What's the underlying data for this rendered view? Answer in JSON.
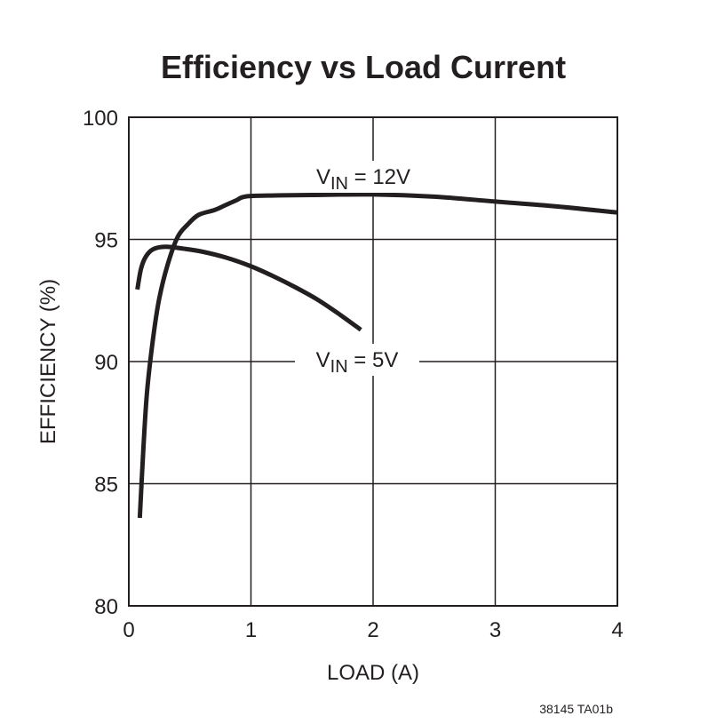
{
  "chart_data": {
    "type": "line",
    "title": "Efficiency vs Load Current",
    "xlabel": "LOAD (A)",
    "ylabel": "EFFICIENCY (%)",
    "xlim": [
      0,
      4
    ],
    "ylim": [
      80,
      100
    ],
    "xticks": [
      "0",
      "1",
      "2",
      "3",
      "4"
    ],
    "yticks": [
      "80",
      "85",
      "90",
      "95",
      "100"
    ],
    "grid": true,
    "line_color": "#231f20",
    "series": [
      {
        "name": "VIN = 12V",
        "label_main": "V",
        "label_sub": "IN",
        "label_rest": " = 12V",
        "x": [
          0.09,
          0.12,
          0.15,
          0.2,
          0.25,
          0.32,
          0.4,
          0.48,
          0.57,
          0.7,
          0.79,
          0.88,
          0.96,
          1.2,
          1.5,
          2.0,
          2.5,
          3.0,
          3.5,
          4.0
        ],
        "y": [
          83.6,
          86.5,
          88.8,
          91.0,
          92.6,
          94.0,
          95.1,
          95.6,
          96.0,
          96.2,
          96.4,
          96.6,
          96.76,
          96.8,
          96.82,
          96.84,
          96.75,
          96.55,
          96.35,
          96.1
        ]
      },
      {
        "name": "VIN = 5V",
        "label_main": "V",
        "label_sub": "IN",
        "label_rest": " = 5V",
        "x": [
          0.07,
          0.1,
          0.14,
          0.2,
          0.3,
          0.45,
          0.6,
          0.8,
          1.0,
          1.18,
          1.36,
          1.54,
          1.72,
          1.9
        ],
        "y": [
          92.95,
          93.8,
          94.3,
          94.6,
          94.7,
          94.62,
          94.5,
          94.25,
          93.9,
          93.5,
          93.05,
          92.55,
          91.95,
          91.3
        ]
      }
    ],
    "footnote": "38145 TA01b"
  }
}
